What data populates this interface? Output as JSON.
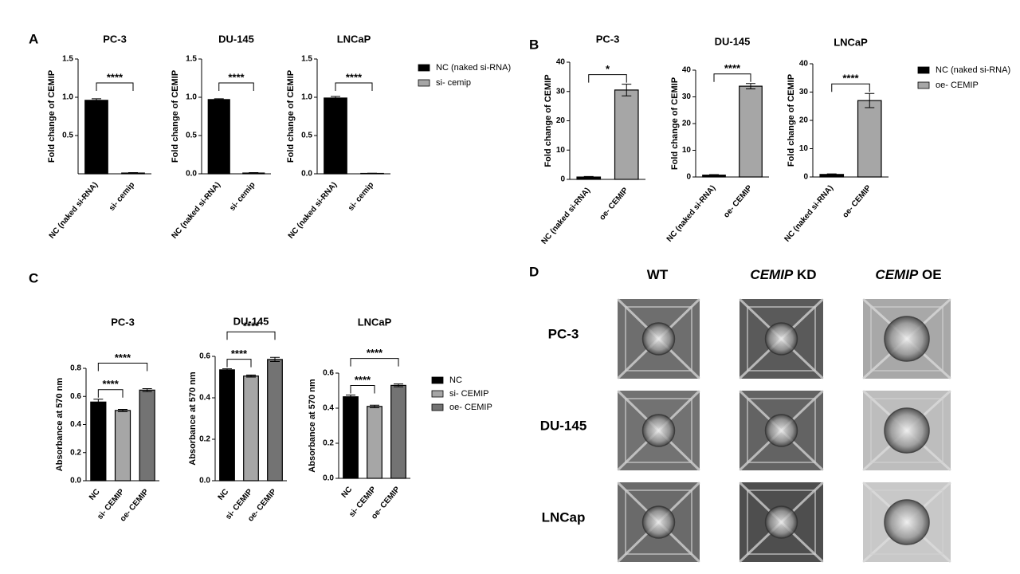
{
  "panel_labels": [
    "A",
    "B",
    "C",
    "D"
  ],
  "chart_data": [
    {
      "type": "bar",
      "title": "PC-3",
      "y_label": "Fold change of CEMIP",
      "categories": [
        "NC (naked si-RNA)",
        "si- cemip"
      ],
      "values": [
        0.96,
        0.01
      ],
      "errors": [
        0.02,
        0.005
      ],
      "colors": [
        "#000000",
        "#a6a6a6"
      ],
      "ylim": [
        0,
        1.5
      ],
      "yticks": [
        0.5,
        {
          "value": 1,
          "label": "1.0"
        },
        1.5
      ],
      "brackets": [
        {
          "from": "NC (naked si-RNA)",
          "to": "si- cemip",
          "label": "****"
        }
      ]
    },
    {
      "type": "bar",
      "title": "DU-145",
      "y_label": "Fold change of CEMIP",
      "categories": [
        "NC (naked si-RNA)",
        "si- cemip"
      ],
      "values": [
        0.97,
        0.01
      ],
      "errors": [
        0.01,
        0.005
      ],
      "colors": [
        "#000000",
        "#a6a6a6"
      ],
      "ylim": [
        0,
        1.5
      ],
      "yticks": [
        {
          "value": 0,
          "label": "0.0"
        },
        0.5,
        {
          "value": 1,
          "label": "1.0"
        },
        1.5
      ],
      "brackets": [
        {
          "from": "NC (naked si-RNA)",
          "to": "si- cemip",
          "label": "****"
        }
      ]
    },
    {
      "type": "bar",
      "title": "LNCaP",
      "y_label": "Fold change of CEMIP",
      "categories": [
        "NC (naked si-RNA)",
        "si- cemip"
      ],
      "values": [
        0.99,
        0.005
      ],
      "errors": [
        0.02,
        0.003
      ],
      "colors": [
        "#000000",
        "#a6a6a6"
      ],
      "ylim": [
        0,
        1.5
      ],
      "yticks": [
        {
          "value": 0,
          "label": "0.0"
        },
        0.5,
        {
          "value": 1,
          "label": "1.0"
        },
        1.5
      ],
      "brackets": [
        {
          "from": "NC (naked si-RNA)",
          "to": "si- cemip",
          "label": "****"
        }
      ],
      "legend": true
    },
    {
      "type": "bar",
      "title": "PC-3",
      "y_label": "Fold change of CEMIP",
      "categories": [
        "NC (naked si-RNA)",
        "oe- CEMIP"
      ],
      "values": [
        0.8,
        30.5
      ],
      "errors": [
        0.2,
        2
      ],
      "colors": [
        "#000000",
        "#a6a6a6"
      ],
      "ylim": [
        0,
        40
      ],
      "yticks": [
        0,
        10,
        20,
        30,
        40
      ],
      "brackets": [
        {
          "from": "NC (naked si-RNA)",
          "to": "oe- CEMIP",
          "label": "*"
        }
      ]
    },
    {
      "type": "bar",
      "title": "DU-145",
      "y_label": "Fold change of CEMIP",
      "categories": [
        "NC (naked si-RNA)",
        "oe- CEMIP"
      ],
      "values": [
        0.7,
        34
      ],
      "errors": [
        0.2,
        1
      ],
      "colors": [
        "#000000",
        "#a6a6a6"
      ],
      "ylim": [
        0,
        40
      ],
      "yticks": [
        0,
        10,
        20,
        30,
        40
      ],
      "brackets": [
        {
          "from": "NC (naked si-RNA)",
          "to": "oe- CEMIP",
          "label": "****"
        }
      ]
    },
    {
      "type": "bar",
      "title": "LNCaP",
      "y_label": "Fold change of CEMIP",
      "categories": [
        "NC (naked si-RNA)",
        "oe- CEMIP"
      ],
      "values": [
        0.9,
        27
      ],
      "errors": [
        0.2,
        2.5
      ],
      "colors": [
        "#000000",
        "#a6a6a6"
      ],
      "ylim": [
        0,
        40
      ],
      "yticks": [
        0,
        10,
        20,
        30,
        40
      ],
      "brackets": [
        {
          "from": "NC (naked si-RNA)",
          "to": "oe- CEMIP",
          "label": "****"
        }
      ],
      "legend": true
    },
    {
      "type": "bar",
      "title": "PC-3",
      "y_label": "Absorbance at 570 nm",
      "categories": [
        "NC",
        "si- CEMIP",
        "oe- CEMIP"
      ],
      "values": [
        0.56,
        0.5,
        0.645
      ],
      "errors": [
        0.02,
        0.008,
        0.01
      ],
      "colors": [
        "#000000",
        "#a6a6a6",
        "#737373"
      ],
      "ylim": [
        0,
        0.8
      ],
      "yticks": [
        {
          "value": 0,
          "label": "0.0"
        },
        0.2,
        0.4,
        0.6,
        0.8
      ],
      "brackets": [
        {
          "from": "NC",
          "to": "si- CEMIP",
          "label": "****"
        },
        {
          "from": "NC",
          "to": "oe- CEMIP",
          "label": "****"
        }
      ]
    },
    {
      "type": "bar",
      "title": "DU-145",
      "y_label": "Absorbance at 570 nm",
      "categories": [
        "NC",
        "si- CEMIP",
        "oe- CEMIP"
      ],
      "values": [
        0.535,
        0.505,
        0.585
      ],
      "errors": [
        0.005,
        0.005,
        0.01
      ],
      "colors": [
        "#000000",
        "#a6a6a6",
        "#737373"
      ],
      "ylim": [
        0,
        0.6
      ],
      "yticks": [
        {
          "value": 0,
          "label": "0.0"
        },
        0.2,
        0.4,
        0.6
      ],
      "brackets": [
        {
          "from": "NC",
          "to": "si- CEMIP",
          "label": "****"
        },
        {
          "from": "NC",
          "to": "oe- CEMIP",
          "label": "****"
        }
      ]
    },
    {
      "type": "bar",
      "title": "LNCaP",
      "y_label": "Absorbance at 570 nm",
      "categories": [
        "NC",
        "si- CEMIP",
        "oe- CEMIP"
      ],
      "values": [
        0.465,
        0.41,
        0.53
      ],
      "errors": [
        0.01,
        0.007,
        0.008
      ],
      "colors": [
        "#000000",
        "#a6a6a6",
        "#737373"
      ],
      "ylim": [
        0,
        0.6
      ],
      "yticks": [
        {
          "value": 0,
          "label": "0.0"
        },
        0.2,
        0.4,
        0.6
      ],
      "brackets": [
        {
          "from": "NC",
          "to": "si- CEMIP",
          "label": "****"
        },
        {
          "from": "NC",
          "to": "oe- CEMIP",
          "label": "****"
        }
      ],
      "legend": true
    }
  ],
  "image_grid": {
    "columns": [
      {
        "label": "WT"
      },
      {
        "gene": "CEMIP",
        "label": "KD"
      },
      {
        "gene": "CEMIP",
        "label": "OE"
      }
    ],
    "rows": [
      "PC-3",
      "DU-145",
      "LNCap"
    ]
  }
}
